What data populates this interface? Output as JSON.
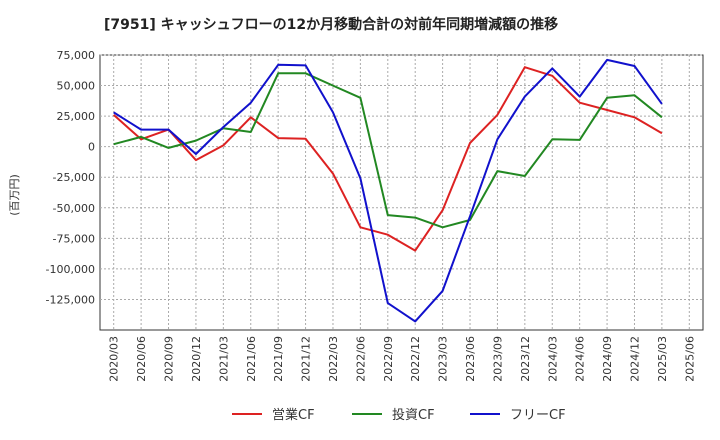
{
  "chart_data": {
    "type": "line",
    "title": "[7951]  キャッシュフローの12か月移動合計の対前年同期増減額の推移",
    "ylabel": "(百万円)",
    "xlabel": "",
    "ylim": [
      -150000,
      75000
    ],
    "y_ticks": [
      75000,
      50000,
      25000,
      0,
      -25000,
      -50000,
      -75000,
      -100000,
      -125000
    ],
    "y_tick_labels": [
      "75,000",
      "50,000",
      "25,000",
      "0",
      "-25,000",
      "-50,000",
      "-75,000",
      "-100,000",
      "-125,000"
    ],
    "x_tick_labels": [
      "2020/03",
      "2020/06",
      "2020/09",
      "2020/12",
      "2021/03",
      "2021/06",
      "2021/09",
      "2021/12",
      "2022/03",
      "2022/06",
      "2022/09",
      "2022/12",
      "2023/03",
      "2023/06",
      "2023/09",
      "2023/12",
      "2024/03",
      "2024/06",
      "2024/09",
      "2024/12",
      "2025/03",
      "2025/06"
    ],
    "grid": true,
    "legend_position": "bottom",
    "series": [
      {
        "name": "営業CF",
        "color": "#dd2222",
        "values": [
          26000,
          6000,
          14000,
          -11000,
          1000,
          24000,
          7000,
          6500,
          -22000,
          -66000,
          -72000,
          -85000,
          -52000,
          3000,
          26000,
          65000,
          58000,
          36000,
          30000,
          24000,
          11000
        ]
      },
      {
        "name": "投資CF",
        "color": "#228822",
        "values": [
          2000,
          8000,
          -1000,
          5000,
          15000,
          12000,
          60000,
          60000,
          50000,
          40000,
          -56000,
          -58000,
          -66000,
          -60000,
          -20000,
          -24000,
          6000,
          5500,
          40000,
          42000,
          24000
        ]
      },
      {
        "name": "フリーCF",
        "color": "#1111cc",
        "values": [
          28000,
          14000,
          14000,
          -6000,
          16000,
          36000,
          67000,
          66500,
          28000,
          -26000,
          -128000,
          -143000,
          -118000,
          -57000,
          6000,
          41000,
          64000,
          41000,
          71000,
          66000,
          35000
        ]
      }
    ]
  }
}
